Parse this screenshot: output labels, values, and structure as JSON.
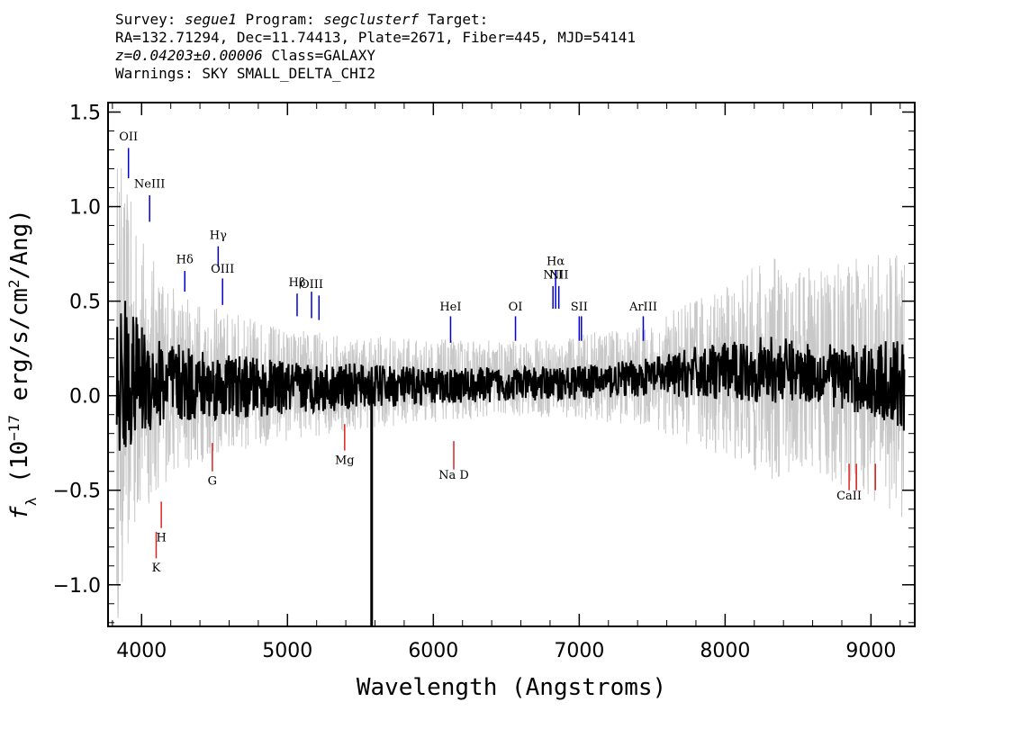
{
  "header": {
    "survey_label": "Survey:",
    "survey": "segue1",
    "program_label": "Program:",
    "program": "segclusterf",
    "target_label": "Target:",
    "line2": "RA=132.71294, Dec=11.74413, Plate=2671, Fiber=445, MJD=54141",
    "redshift": "z=0.04203±0.00006",
    "class": "Class=GALAXY",
    "warnings": "Warnings: SKY SMALL_DELTA_CHI2"
  },
  "chart_data": {
    "type": "line",
    "title": "",
    "xlabel": "Wavelength (Angstroms)",
    "ylabel": "f_λ (10^-17 erg/s/cm²/Ang)",
    "xlim": [
      3770,
      9300
    ],
    "ylim": [
      -1.22,
      1.55
    ],
    "x_ticks": [
      4000,
      5000,
      6000,
      7000,
      8000,
      9000
    ],
    "y_ticks": [
      -1.0,
      -0.5,
      0.0,
      0.5,
      1.0,
      1.5
    ],
    "y_tick_labels": [
      "−1.0",
      "−0.5",
      "0.0",
      "0.5",
      "1.0",
      "1.5"
    ],
    "grid": false,
    "series": [
      {
        "color": "#c8c8c8",
        "style": "noise-envelope",
        "x": [
          3830,
          3900,
          4000,
          4200,
          4500,
          5000,
          5500,
          6000,
          6500,
          7000,
          7500,
          7800,
          8000,
          8300,
          8500,
          8800,
          9000,
          9230
        ],
        "y": [
          0.05,
          0.1,
          0.1,
          0.08,
          0.07,
          0.06,
          0.07,
          0.08,
          0.09,
          0.1,
          0.11,
          0.12,
          0.13,
          0.14,
          0.13,
          0.11,
          0.1,
          0.05
        ],
        "spread": [
          1.3,
          1.0,
          0.75,
          0.5,
          0.4,
          0.3,
          0.25,
          0.22,
          0.2,
          0.22,
          0.28,
          0.4,
          0.45,
          0.6,
          0.55,
          0.6,
          0.65,
          0.7
        ]
      },
      {
        "color": "#000000",
        "style": "spectrum",
        "x": [
          3830,
          3900,
          4000,
          4200,
          4500,
          5000,
          5500,
          6000,
          6500,
          7000,
          7500,
          7800,
          8000,
          8300,
          8500,
          8800,
          9000,
          9230
        ],
        "y": [
          0.05,
          0.1,
          0.08,
          0.06,
          0.05,
          0.04,
          0.05,
          0.05,
          0.06,
          0.07,
          0.1,
          0.12,
          0.13,
          0.14,
          0.13,
          0.1,
          0.08,
          0.05
        ],
        "spread": [
          0.5,
          0.4,
          0.3,
          0.22,
          0.18,
          0.14,
          0.12,
          0.1,
          0.09,
          0.09,
          0.1,
          0.14,
          0.15,
          0.18,
          0.16,
          0.17,
          0.2,
          0.25
        ]
      }
    ],
    "spikes": [
      {
        "x": 5577,
        "y_from": 0.1,
        "y_to": -1.22
      }
    ],
    "emission_lines": [
      {
        "label": "OII",
        "x": 3910,
        "y_text": 1.35,
        "y_top": 1.31,
        "y_bottom": 1.15
      },
      {
        "label": "NeIII",
        "x": 4055,
        "y_text": 1.1,
        "y_top": 1.06,
        "y_bottom": 0.92
      },
      {
        "label": "Hδ",
        "x": 4296,
        "y_text": 0.7,
        "y_top": 0.66,
        "y_bottom": 0.55
      },
      {
        "label": "Hγ",
        "x": 4525,
        "y_text": 0.83,
        "y_top": 0.79,
        "y_bottom": 0.68
      },
      {
        "label": "OIII",
        "x": 4555,
        "y_text": 0.65,
        "y_top": 0.62,
        "y_bottom": 0.48
      },
      {
        "label": "Hβ",
        "x": 5066,
        "y_text": 0.58,
        "y_top": 0.54,
        "y_bottom": 0.42
      },
      {
        "label": "OIII",
        "x": 5165,
        "y_text": 0.57,
        "y_top": 0.55,
        "y_bottom": 0.41
      },
      {
        "label": "OIII",
        "x": 5216,
        "y_text": "",
        "y_top": 0.53,
        "y_bottom": 0.4
      },
      {
        "label": "HeI",
        "x": 6118,
        "y_text": 0.45,
        "y_top": 0.42,
        "y_bottom": 0.28
      },
      {
        "label": "OI",
        "x": 6563,
        "y_text": 0.45,
        "y_top": 0.42,
        "y_bottom": 0.29
      },
      {
        "label": "NII",
        "x": 6820,
        "y_text": 0.62,
        "y_top": 0.58,
        "y_bottom": 0.46
      },
      {
        "label": "Hα",
        "x": 6838,
        "y_text": 0.69,
        "y_top": 0.66,
        "y_bottom": 0.46
      },
      {
        "label": "NII",
        "x": 6860,
        "y_text": 0.62,
        "y_top": 0.58,
        "y_bottom": 0.46
      },
      {
        "label": "SII",
        "x": 7000,
        "y_text": 0.45,
        "y_top": 0.42,
        "y_bottom": 0.29
      },
      {
        "label": "SII",
        "x": 7015,
        "y_text": "",
        "y_top": 0.42,
        "y_bottom": 0.29
      },
      {
        "label": "ArIII",
        "x": 7439,
        "y_text": 0.45,
        "y_top": 0.42,
        "y_bottom": 0.29
      }
    ],
    "absorption_lines": [
      {
        "label": "K",
        "x": 4100,
        "y_text": -0.93,
        "y_top": -0.72,
        "y_bottom": -0.86
      },
      {
        "label": "H",
        "x": 4135,
        "y_text": -0.77,
        "y_top": -0.56,
        "y_bottom": -0.7
      },
      {
        "label": "G",
        "x": 4485,
        "y_text": -0.47,
        "y_top": -0.25,
        "y_bottom": -0.4
      },
      {
        "label": "Mg",
        "x": 5392,
        "y_text": -0.36,
        "y_top": -0.15,
        "y_bottom": -0.29
      },
      {
        "label": "Na D",
        "x": 6140,
        "y_text": -0.44,
        "y_top": -0.24,
        "y_bottom": -0.39
      },
      {
        "label": "CaII",
        "x": 8850,
        "y_text": -0.55,
        "y_top": -0.36,
        "y_bottom": -0.5
      },
      {
        "label": "",
        "x": 8900,
        "y_text": "",
        "y_top": -0.36,
        "y_bottom": -0.5
      },
      {
        "label": "",
        "x": 9030,
        "y_text": "",
        "y_top": -0.36,
        "y_bottom": -0.5
      }
    ]
  }
}
